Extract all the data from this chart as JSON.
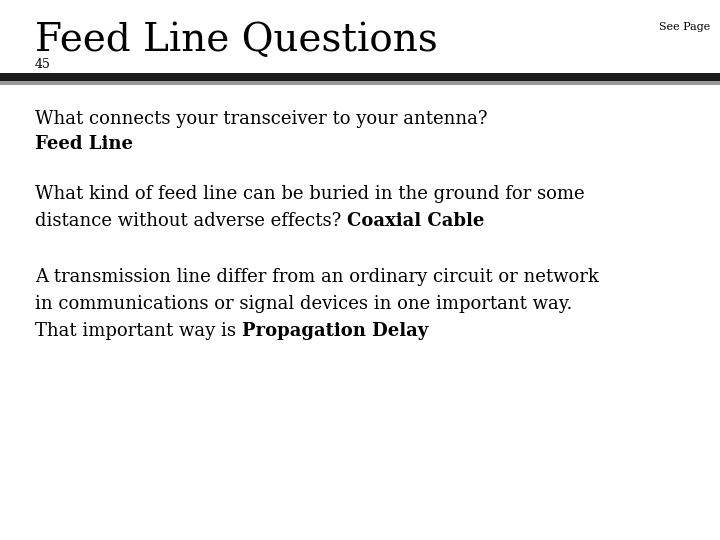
{
  "title": "Feed Line Questions",
  "subtitle": "45",
  "see_page": "See Page",
  "bar_top_color": "#1a1a1a",
  "bar_bottom_color": "#999999",
  "background_color": "#ffffff",
  "text_color": "#000000",
  "title_fontsize": 28,
  "subtitle_fontsize": 9,
  "see_page_fontsize": 8,
  "body_fontsize": 13,
  "q1_line1": "What connects your transceiver to your antenna?",
  "q1_bold": "Feed Line",
  "q2_line1": "What kind of feed line can be buried in the ground for some",
  "q2_line2_normal": "distance without adverse effects? ",
  "q2_bold": "Coaxial Cable",
  "q3_line1": "A transmission line differ from an ordinary circuit or network",
  "q3_line2": "in communications or signal devices in one important way.",
  "q3_line3_normal": "That important way is ",
  "q3_bold": "Propagation Delay"
}
